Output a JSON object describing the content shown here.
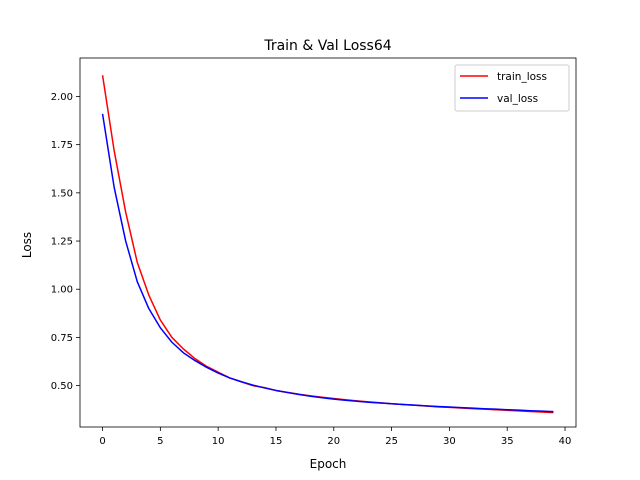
{
  "chart_data": {
    "type": "line",
    "title": "Train & Val Loss64",
    "xlabel": "Epoch",
    "ylabel": "Loss",
    "xlim": [
      -1.95,
      40.95
    ],
    "ylim": [
      0.2854,
      2.1995
    ],
    "xticks": [
      0,
      5,
      10,
      15,
      20,
      25,
      30,
      35,
      40
    ],
    "yticks": [
      0.5,
      0.75,
      1.0,
      1.25,
      1.5,
      1.75,
      2.0
    ],
    "ytick_labels": [
      "0.50",
      "0.75",
      "1.00",
      "1.25",
      "1.50",
      "1.75",
      "2.00"
    ],
    "grid": false,
    "legend_position": "top-right",
    "x": [
      0,
      1,
      2,
      3,
      4,
      5,
      6,
      7,
      8,
      9,
      10,
      11,
      12,
      13,
      14,
      15,
      16,
      17,
      18,
      19,
      20,
      21,
      22,
      23,
      24,
      25,
      26,
      27,
      28,
      29,
      30,
      31,
      32,
      33,
      34,
      35,
      36,
      37,
      38,
      39
    ],
    "series": [
      {
        "name": "train_loss",
        "color": "#ff0000",
        "values": [
          2.11,
          1.72,
          1.4,
          1.14,
          0.97,
          0.84,
          0.75,
          0.69,
          0.64,
          0.6,
          0.57,
          0.54,
          0.52,
          0.5,
          0.49,
          0.475,
          0.465,
          0.455,
          0.447,
          0.44,
          0.433,
          0.427,
          0.421,
          0.416,
          0.411,
          0.406,
          0.402,
          0.398,
          0.394,
          0.39,
          0.387,
          0.384,
          0.381,
          0.378,
          0.375,
          0.372,
          0.369,
          0.366,
          0.363,
          0.36
        ]
      },
      {
        "name": "val_loss",
        "color": "#0000ff",
        "values": [
          1.91,
          1.53,
          1.25,
          1.04,
          0.9,
          0.8,
          0.725,
          0.67,
          0.63,
          0.595,
          0.565,
          0.54,
          0.52,
          0.503,
          0.488,
          0.475,
          0.464,
          0.454,
          0.445,
          0.437,
          0.43,
          0.424,
          0.419,
          0.414,
          0.41,
          0.406,
          0.402,
          0.399,
          0.395,
          0.392,
          0.389,
          0.386,
          0.383,
          0.38,
          0.378,
          0.375,
          0.373,
          0.37,
          0.368,
          0.365
        ]
      }
    ]
  }
}
